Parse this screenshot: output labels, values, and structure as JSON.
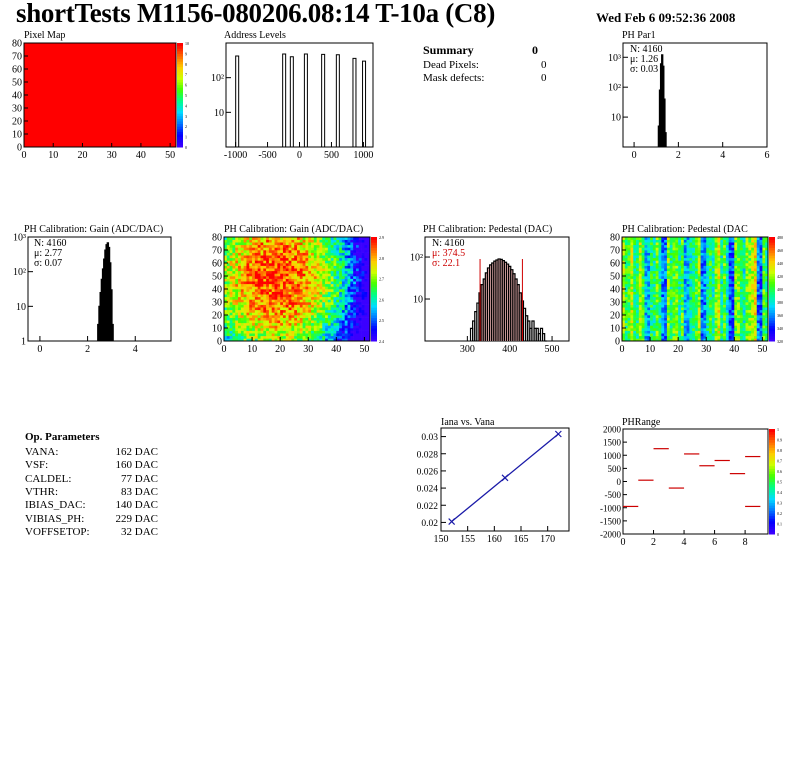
{
  "header": {
    "title": "shortTests M1156-080206.08:14 T-10a (C8)",
    "date": "Wed Feb  6 09:52:36 2008"
  },
  "summary": {
    "title": "Summary",
    "total": "0",
    "rows": [
      {
        "label": "Dead Pixels:",
        "value": "0"
      },
      {
        "label": "Mask defects:",
        "value": "0"
      }
    ]
  },
  "op_parameters": {
    "title": "Op. Parameters",
    "rows": [
      {
        "name": "VANA:",
        "value": "162 DAC"
      },
      {
        "name": "VSF:",
        "value": "160 DAC"
      },
      {
        "name": "CALDEL:",
        "value": "77 DAC"
      },
      {
        "name": "VTHR:",
        "value": "83 DAC"
      },
      {
        "name": "IBIAS_DAC:",
        "value": "140 DAC"
      },
      {
        "name": "VIBIAS_PH:",
        "value": "229 DAC"
      },
      {
        "name": "VOFFSETOP:",
        "value": "32 DAC"
      }
    ]
  },
  "chart_data": [
    {
      "id": "pixel-map",
      "type": "heatmap",
      "title": "Pixel Map",
      "xlim": [
        0,
        52
      ],
      "ylim": [
        0,
        80
      ],
      "xticks": [
        0,
        10,
        20,
        30,
        40,
        50
      ],
      "yticks": [
        0,
        10,
        20,
        30,
        40,
        50,
        60,
        70,
        80
      ],
      "zlim": [
        0,
        10
      ],
      "zticks": [
        "0",
        "1",
        "2",
        "3",
        "4",
        "5",
        "6",
        "7",
        "8",
        "9",
        "10"
      ],
      "uniform_value": 10,
      "fill_color": "#ff0000"
    },
    {
      "id": "address-levels",
      "type": "bar",
      "title": "Address Levels",
      "log_y": true,
      "xlim": [
        -1150,
        1150
      ],
      "ylim": [
        1,
        1000
      ],
      "xticks": [
        "-1000",
        "-500",
        "0",
        "500",
        "1000"
      ],
      "xtick_values": [
        -1000,
        -500,
        0,
        500,
        1000
      ],
      "yticks": [
        "10",
        "10²"
      ],
      "ytick_values": [
        10,
        100
      ],
      "peaks": [
        {
          "x": -975,
          "y": 420
        },
        {
          "x": -240,
          "y": 480
        },
        {
          "x": -120,
          "y": 400
        },
        {
          "x": 100,
          "y": 480
        },
        {
          "x": 370,
          "y": 470
        },
        {
          "x": 600,
          "y": 460
        },
        {
          "x": 860,
          "y": 360
        },
        {
          "x": 1010,
          "y": 300
        }
      ]
    },
    {
      "id": "ph-par1",
      "type": "bar",
      "title": "PH Par1",
      "log_y": true,
      "xlim": [
        -0.5,
        6
      ],
      "ylim": [
        1,
        3000
      ],
      "xticks": [
        "0",
        "2",
        "4",
        "6"
      ],
      "xtick_values": [
        0,
        2,
        4,
        6
      ],
      "yticks": [
        "10",
        "10²",
        "10³"
      ],
      "ytick_values": [
        10,
        100,
        1000
      ],
      "stats": {
        "N": "N: 4160",
        "mu": "μ: 1.26",
        "sigma": "σ: 0.03"
      },
      "bins": [
        [
          1.12,
          5
        ],
        [
          1.17,
          80
        ],
        [
          1.22,
          600
        ],
        [
          1.27,
          1200
        ],
        [
          1.32,
          500
        ],
        [
          1.37,
          40
        ],
        [
          1.42,
          3
        ]
      ]
    },
    {
      "id": "ph-gain-1d",
      "type": "bar",
      "title": "PH Calibration: Gain (ADC/DAC)",
      "log_y": true,
      "xlim": [
        -0.5,
        5.5
      ],
      "ylim": [
        1,
        1000
      ],
      "xticks": [
        "0",
        "2",
        "4"
      ],
      "xtick_values": [
        0,
        2,
        4
      ],
      "yticks": [
        "1",
        "10",
        "10²",
        "10³"
      ],
      "ytick_values": [
        1,
        10,
        100,
        1000
      ],
      "stats": {
        "N": "N: 4160",
        "mu": "μ: 2.77",
        "sigma": "σ: 0.07"
      },
      "bins": [
        [
          2.45,
          3
        ],
        [
          2.5,
          10
        ],
        [
          2.55,
          25
        ],
        [
          2.6,
          60
        ],
        [
          2.65,
          120
        ],
        [
          2.7,
          230
        ],
        [
          2.75,
          420
        ],
        [
          2.8,
          600
        ],
        [
          2.85,
          680
        ],
        [
          2.9,
          500
        ],
        [
          2.95,
          180
        ],
        [
          3.0,
          30
        ],
        [
          3.05,
          3
        ]
      ]
    },
    {
      "id": "ph-gain-2d",
      "type": "heatmap",
      "title": "PH Calibration: Gain (ADC/DAC)",
      "xlim": [
        0,
        52
      ],
      "ylim": [
        0,
        80
      ],
      "xticks": [
        0,
        10,
        20,
        30,
        40,
        50
      ],
      "yticks": [
        0,
        10,
        20,
        30,
        40,
        50,
        60,
        70,
        80
      ],
      "zticks": [
        "2.4",
        "2.5",
        "2.6",
        "2.7",
        "2.8",
        "2.9"
      ],
      "colorbar": [
        "#3b00ff",
        "#0000ff",
        "#0077ff",
        "#00ddff",
        "#00ff88",
        "#44ff00",
        "#ccff00",
        "#ffcc00",
        "#ff6600",
        "#ff0000"
      ]
    },
    {
      "id": "ph-pedestal-1d",
      "type": "bar",
      "title": "PH Calibration: Pedestal (DAC)",
      "log_y": true,
      "xlim": [
        200,
        540
      ],
      "ylim": [
        1,
        300
      ],
      "xticks": [
        "300",
        "400",
        "500"
      ],
      "xtick_values": [
        300,
        400,
        500
      ],
      "yticks": [
        "10",
        "10²"
      ],
      "ytick_values": [
        10,
        100
      ],
      "stats": {
        "N": "N: 4160",
        "mu": "μ: 374.5",
        "sigma": "σ: 22.1"
      },
      "fit_range": [
        330,
        430
      ],
      "bins": [
        [
          310,
          2
        ],
        [
          315,
          3
        ],
        [
          320,
          5
        ],
        [
          325,
          8
        ],
        [
          330,
          14
        ],
        [
          335,
          22
        ],
        [
          340,
          30
        ],
        [
          345,
          42
        ],
        [
          350,
          55
        ],
        [
          355,
          65
        ],
        [
          360,
          72
        ],
        [
          365,
          80
        ],
        [
          370,
          85
        ],
        [
          375,
          90
        ],
        [
          380,
          88
        ],
        [
          385,
          82
        ],
        [
          390,
          75
        ],
        [
          395,
          68
        ],
        [
          400,
          60
        ],
        [
          405,
          50
        ],
        [
          410,
          40
        ],
        [
          415,
          30
        ],
        [
          420,
          22
        ],
        [
          425,
          14
        ],
        [
          430,
          9
        ],
        [
          435,
          6
        ],
        [
          440,
          4
        ],
        [
          445,
          3
        ],
        [
          450,
          2
        ],
        [
          455,
          3
        ],
        [
          460,
          2
        ],
        [
          465,
          2
        ],
        [
          470,
          1.5
        ],
        [
          475,
          2
        ],
        [
          480,
          1.5
        ],
        [
          485,
          1
        ]
      ]
    },
    {
      "id": "ph-pedestal-2d",
      "type": "heatmap",
      "title": "PH Calibration: Pedestal (DAC",
      "xlim": [
        0,
        52
      ],
      "ylim": [
        0,
        80
      ],
      "xticks": [
        0,
        10,
        20,
        30,
        40,
        50
      ],
      "yticks": [
        0,
        10,
        20,
        30,
        40,
        50,
        60,
        70,
        80
      ],
      "zticks": [
        "320",
        "340",
        "360",
        "380",
        "400",
        "420",
        "440",
        "460",
        "480"
      ],
      "colorbar": [
        "#3b00ff",
        "#0000ff",
        "#0077ff",
        "#00ddff",
        "#00ff88",
        "#44ff00",
        "#ccff00",
        "#ffcc00",
        "#ff6600",
        "#ff0000"
      ]
    },
    {
      "id": "iana-vs-vana",
      "type": "line",
      "title": "Iana vs. Vana",
      "xlim": [
        150,
        174
      ],
      "ylim": [
        0.019,
        0.031
      ],
      "xticks": [
        "150",
        "155",
        "160",
        "165",
        "170"
      ],
      "xtick_values": [
        150,
        155,
        160,
        165,
        170
      ],
      "yticks": [
        "0.02",
        "0.022",
        "0.024",
        "0.026",
        "0.028",
        "0.03"
      ],
      "ytick_values": [
        0.02,
        0.022,
        0.024,
        0.026,
        0.028,
        0.03
      ],
      "points": [
        [
          152,
          0.0201
        ],
        [
          162,
          0.0252
        ],
        [
          172,
          0.0303
        ]
      ],
      "line_color": "#1a1aa8"
    },
    {
      "id": "ph-range",
      "type": "scatter",
      "title": "PHRange",
      "xlim": [
        0,
        9.5
      ],
      "ylim": [
        -2000,
        2000
      ],
      "xticks": [
        "0",
        "2",
        "4",
        "6",
        "8"
      ],
      "xtick_values": [
        0,
        2,
        4,
        6,
        8
      ],
      "yticks": [
        "-2000",
        "-1500",
        "-1000",
        "-500",
        "0",
        "500",
        "1000",
        "1500",
        "2000"
      ],
      "ytick_values": [
        -2000,
        -1500,
        -1000,
        -500,
        0,
        500,
        1000,
        1500,
        2000
      ],
      "zticks": [
        "0",
        "0.1",
        "0.2",
        "0.3",
        "0.4",
        "0.5",
        "0.6",
        "0.7",
        "0.8",
        "0.9",
        "1"
      ],
      "segments": [
        [
          0,
          -950
        ],
        [
          1,
          50
        ],
        [
          2,
          1250
        ],
        [
          3,
          -250
        ],
        [
          4,
          1050
        ],
        [
          5,
          600
        ],
        [
          6,
          800
        ],
        [
          7,
          300
        ],
        [
          8,
          -950
        ],
        [
          8,
          950
        ]
      ],
      "colorbar": [
        "#3b00ff",
        "#0000ff",
        "#0077ff",
        "#00ddff",
        "#00ff88",
        "#44ff00",
        "#ccff00",
        "#ffcc00",
        "#ff6600",
        "#ff0000"
      ]
    }
  ]
}
